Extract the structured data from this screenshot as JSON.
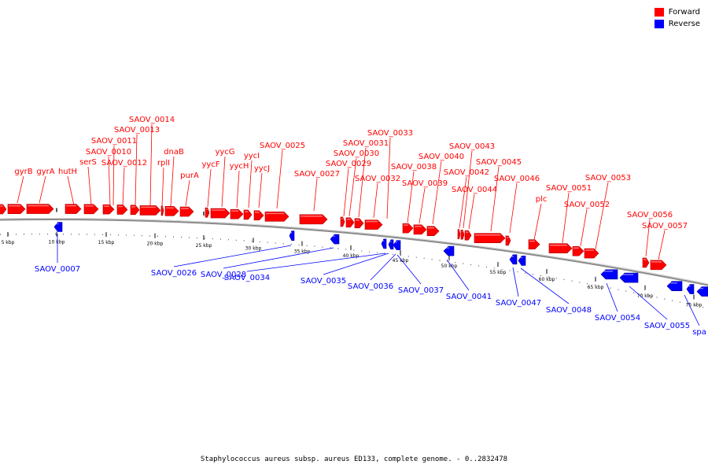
{
  "caption": "Staphylococcus aureus subsp. aureus ED133, complete genome. - 0..2832478",
  "legend": [
    {
      "label": "Forward",
      "color": "#ff0000"
    },
    {
      "label": "Reverse",
      "color": "#0000ff"
    }
  ],
  "colors": {
    "forward": "#ff0000",
    "reverse": "#0000ff",
    "backbone": "#8c8c8c"
  },
  "ticks": [
    "5 kbp",
    "10 kbp",
    "15 kbp",
    "20 kbp",
    "25 kbp",
    "30 kbp",
    "35 kbp",
    "40 kbp",
    "45 kbp",
    "50 kbp",
    "55 kbp",
    "60 kbp",
    "65 kbp",
    "70 kbp",
    "75 kbp"
  ],
  "forward_genes": [
    "gyrB",
    "gyrA",
    "hutH",
    "serS",
    "SAOV_0010",
    "SAOV_0011",
    "SAOV_0012",
    "SAOV_0013",
    "SAOV_0014",
    "rplI",
    "dnaB",
    "purA",
    "yycF",
    "yycG",
    "yycH",
    "yycI",
    "yycJ",
    "SAOV_0025",
    "SAOV_0027",
    "SAOV_0029",
    "SAOV_0030",
    "SAOV_0031",
    "SAOV_0032",
    "SAOV_0033",
    "SAOV_0038",
    "SAOV_0039",
    "SAOV_0040",
    "SAOV_0042",
    "SAOV_0043",
    "SAOV_0044",
    "SAOV_0045",
    "SAOV_0046",
    "plc",
    "SAOV_0051",
    "SAOV_0052",
    "SAOV_0053",
    "SAOV_0056",
    "SAOV_0057"
  ],
  "reverse_genes": [
    "SAOV_0007",
    "SAOV_0026",
    "SAOV_0028",
    "SAOV_0034",
    "SAOV_0035",
    "SAOV_0036",
    "SAOV_0037",
    "SAOV_0041",
    "SAOV_0047",
    "SAOV_0048",
    "SAOV_0054",
    "SAOV_0055",
    "spa"
  ]
}
